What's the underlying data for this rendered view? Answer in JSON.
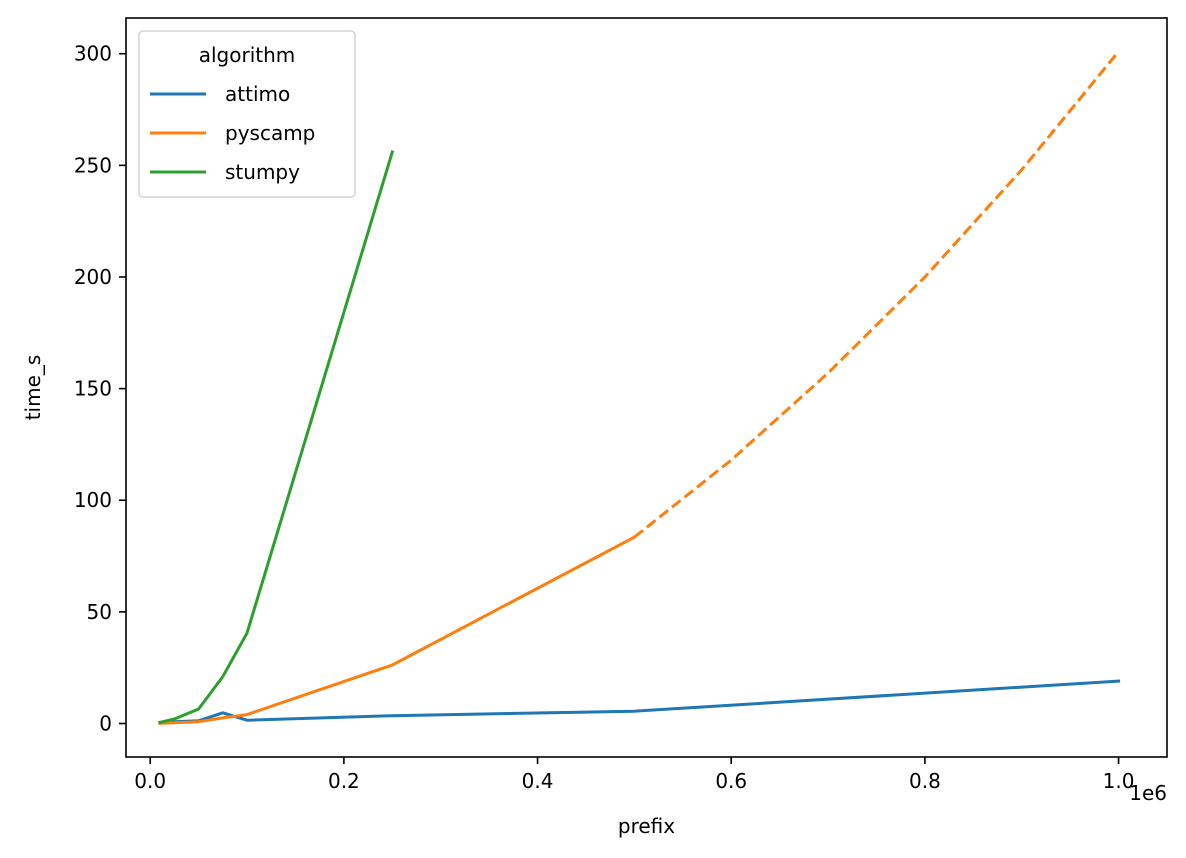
{
  "chart_data": {
    "type": "line",
    "xlabel": "prefix",
    "ylabel": "time_s",
    "x_offset_label": "1e6",
    "xlim": [
      -25000,
      1050000
    ],
    "ylim": [
      -15,
      316
    ],
    "x_ticks": [
      0,
      200000,
      400000,
      600000,
      800000,
      1000000
    ],
    "x_tick_labels": [
      "0.0",
      "0.2",
      "0.4",
      "0.6",
      "0.8",
      "1.0"
    ],
    "y_ticks": [
      0,
      50,
      100,
      150,
      200,
      250,
      300
    ],
    "y_tick_labels": [
      "0",
      "50",
      "100",
      "150",
      "200",
      "250",
      "300"
    ],
    "grid": false,
    "legend": {
      "title": "algorithm",
      "placement": "upper-left"
    },
    "series": [
      {
        "name": "attimo",
        "color": "#1f77b4",
        "segments": [
          {
            "style": "solid",
            "x": [
              10000,
              25000,
              50000,
              75000,
              100000,
              250000,
              500000,
              1000000
            ],
            "y": [
              0.5,
              0.8,
              1.2,
              4.8,
              1.5,
              3.5,
              5.5,
              19
            ]
          }
        ]
      },
      {
        "name": "pyscamp",
        "color": "#ff7f0e",
        "segments": [
          {
            "style": "solid",
            "x": [
              10000,
              25000,
              50000,
              75000,
              100000,
              250000,
              500000
            ],
            "y": [
              0.1,
              0.3,
              0.8,
              2.5,
              4.0,
              26.2,
              83.5
            ]
          },
          {
            "style": "dashed",
            "x": [
              500000,
              600000,
              700000,
              800000,
              900000,
              1000000
            ],
            "y": [
              83.5,
              118,
              157,
              200,
              248,
              301
            ]
          }
        ]
      },
      {
        "name": "stumpy",
        "color": "#2ca02c",
        "segments": [
          {
            "style": "solid",
            "x": [
              10000,
              25000,
              50000,
              75000,
              100000,
              250000
            ],
            "y": [
              0.5,
              2.0,
              6.5,
              21,
              40.5,
              256
            ]
          }
        ]
      }
    ]
  }
}
